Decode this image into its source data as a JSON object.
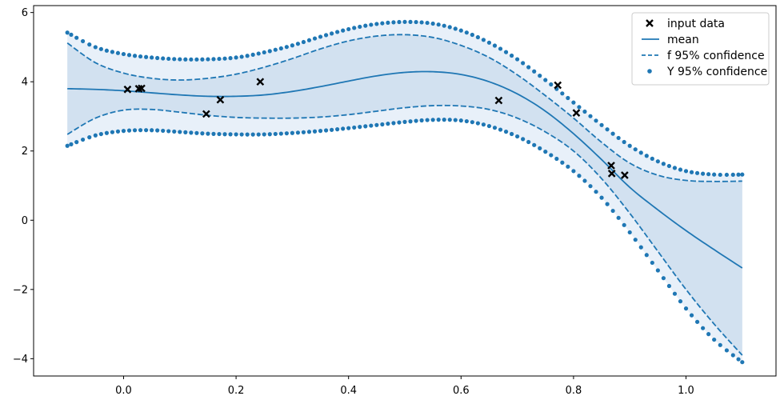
{
  "chart_data": {
    "type": "line",
    "title": "",
    "xlabel": "",
    "ylabel": "",
    "xlim": [
      -0.16,
      1.16
    ],
    "ylim": [
      -4.5,
      6.2
    ],
    "xticks": [
      0.0,
      0.2,
      0.4,
      0.6,
      0.8,
      1.0
    ],
    "xtick_labels": [
      "0.0",
      "0.2",
      "0.4",
      "0.6",
      "0.8",
      "1.0"
    ],
    "yticks": [
      -4,
      -2,
      0,
      2,
      4,
      6
    ],
    "ytick_labels": [
      "−4",
      "−2",
      "0",
      "2",
      "4",
      "6"
    ],
    "legend": {
      "placement": "top-right",
      "entries": [
        {
          "label": "input data",
          "style": "x-marker"
        },
        {
          "label": "mean",
          "style": "solid-line"
        },
        {
          "label": "f 95% confidence",
          "style": "dashed-line"
        },
        {
          "label": "Y 95% confidence",
          "style": "dot-marker"
        }
      ]
    },
    "colors": {
      "series": "#1f77b4",
      "band_outer": "#e8f0f9",
      "band_inner": "#d2e1f0",
      "markers": "#000000"
    },
    "input_data": [
      {
        "x": 0.007,
        "y": 3.78
      },
      {
        "x": 0.027,
        "y": 3.8
      },
      {
        "x": 0.032,
        "y": 3.81
      },
      {
        "x": 0.147,
        "y": 3.07
      },
      {
        "x": 0.172,
        "y": 3.48
      },
      {
        "x": 0.243,
        "y": 4.0
      },
      {
        "x": 0.667,
        "y": 3.46
      },
      {
        "x": 0.772,
        "y": 3.9
      },
      {
        "x": 0.805,
        "y": 3.1
      },
      {
        "x": 0.867,
        "y": 1.58
      },
      {
        "x": 0.868,
        "y": 1.35
      },
      {
        "x": 0.891,
        "y": 1.3
      }
    ],
    "series": [
      {
        "name": "mean",
        "x": [
          -0.1,
          -0.05,
          0.0,
          0.05,
          0.1,
          0.15,
          0.2,
          0.25,
          0.3,
          0.35,
          0.4,
          0.45,
          0.5,
          0.55,
          0.6,
          0.65,
          0.7,
          0.75,
          0.8,
          0.85,
          0.9,
          0.95,
          1.0,
          1.05,
          1.1
        ],
        "y": [
          3.8,
          3.78,
          3.74,
          3.68,
          3.62,
          3.58,
          3.58,
          3.62,
          3.72,
          3.86,
          4.02,
          4.17,
          4.27,
          4.29,
          4.21,
          4.0,
          3.65,
          3.15,
          2.5,
          1.75,
          0.95,
          0.3,
          -0.3,
          -0.85,
          -1.38
        ]
      },
      {
        "name": "f 95% confidence upper",
        "x": [
          -0.1,
          -0.05,
          0.0,
          0.05,
          0.1,
          0.15,
          0.2,
          0.25,
          0.3,
          0.35,
          0.4,
          0.45,
          0.5,
          0.55,
          0.6,
          0.65,
          0.7,
          0.75,
          0.8,
          0.85,
          0.9,
          0.95,
          1.0,
          1.05,
          1.1
        ],
        "y": [
          5.12,
          4.55,
          4.25,
          4.1,
          4.05,
          4.1,
          4.22,
          4.42,
          4.67,
          4.95,
          5.18,
          5.32,
          5.36,
          5.28,
          5.05,
          4.7,
          4.2,
          3.6,
          2.95,
          2.25,
          1.65,
          1.3,
          1.15,
          1.12,
          1.13
        ]
      },
      {
        "name": "f 95% confidence lower",
        "x": [
          -0.1,
          -0.05,
          0.0,
          0.05,
          0.1,
          0.15,
          0.2,
          0.25,
          0.3,
          0.35,
          0.4,
          0.45,
          0.5,
          0.55,
          0.6,
          0.65,
          0.7,
          0.75,
          0.8,
          0.85,
          0.9,
          0.95,
          1.0,
          1.05,
          1.1
        ],
        "y": [
          2.48,
          2.95,
          3.18,
          3.2,
          3.12,
          3.03,
          2.97,
          2.95,
          2.95,
          2.98,
          3.05,
          3.15,
          3.25,
          3.31,
          3.3,
          3.2,
          2.95,
          2.55,
          2.0,
          1.2,
          0.2,
          -0.9,
          -2.0,
          -3.0,
          -3.9
        ]
      },
      {
        "name": "Y 95% confidence upper",
        "x": [
          -0.1,
          -0.05,
          0.0,
          0.05,
          0.1,
          0.15,
          0.2,
          0.25,
          0.3,
          0.35,
          0.4,
          0.45,
          0.5,
          0.55,
          0.6,
          0.65,
          0.7,
          0.75,
          0.8,
          0.85,
          0.9,
          0.95,
          1.0,
          1.05,
          1.1
        ],
        "y": [
          5.42,
          5.0,
          4.8,
          4.7,
          4.65,
          4.65,
          4.7,
          4.85,
          5.05,
          5.3,
          5.52,
          5.67,
          5.73,
          5.68,
          5.48,
          5.13,
          4.65,
          4.05,
          3.4,
          2.75,
          2.15,
          1.7,
          1.42,
          1.32,
          1.32
        ]
      },
      {
        "name": "Y 95% confidence lower",
        "x": [
          -0.1,
          -0.05,
          0.0,
          0.05,
          0.1,
          0.15,
          0.2,
          0.25,
          0.3,
          0.35,
          0.4,
          0.45,
          0.5,
          0.55,
          0.6,
          0.65,
          0.7,
          0.75,
          0.8,
          0.85,
          0.9,
          0.95,
          1.0,
          1.05,
          1.1
        ],
        "y": [
          2.15,
          2.45,
          2.58,
          2.6,
          2.55,
          2.5,
          2.48,
          2.48,
          2.52,
          2.58,
          2.66,
          2.75,
          2.84,
          2.9,
          2.88,
          2.72,
          2.42,
          1.98,
          1.42,
          0.65,
          -0.35,
          -1.45,
          -2.55,
          -3.45,
          -4.1
        ]
      }
    ]
  }
}
